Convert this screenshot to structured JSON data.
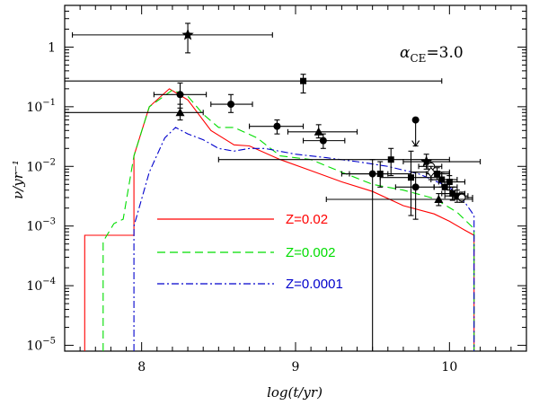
{
  "chart_data": {
    "type": "line",
    "xlabel": "log(t/yr)",
    "ylabel": "ν/yr⁻¹",
    "annotation": "α_CE=3.0",
    "xlim": [
      7.5,
      10.5
    ],
    "ylim": [
      8e-06,
      5
    ],
    "yscale": "log",
    "x_ticks": [
      {
        "v": 8,
        "label": "8"
      },
      {
        "v": 9,
        "label": "9"
      },
      {
        "v": 10,
        "label": "10"
      }
    ],
    "y_ticks": [
      {
        "v": 1e-05,
        "base": "10",
        "exp": "−5"
      },
      {
        "v": 0.0001,
        "base": "10",
        "exp": "−4"
      },
      {
        "v": 0.001,
        "base": "10",
        "exp": "−3"
      },
      {
        "v": 0.01,
        "base": "10",
        "exp": "−2"
      },
      {
        "v": 0.1,
        "base": "10",
        "exp": "−1"
      },
      {
        "v": 1,
        "base": "1",
        "exp": ""
      }
    ],
    "series": [
      {
        "name": "Z=0.02",
        "color": "#ff0000",
        "dash": "",
        "x": [
          7.63,
          7.63,
          7.7,
          7.95,
          7.95,
          8.05,
          8.18,
          8.3,
          8.45,
          8.6,
          8.7,
          8.9,
          9.1,
          9.3,
          9.5,
          9.7,
          9.9,
          10.0,
          10.1,
          10.16,
          10.16
        ],
        "y": [
          8e-06,
          0.0007,
          0.0007,
          0.0007,
          0.015,
          0.1,
          0.2,
          0.13,
          0.04,
          0.023,
          0.022,
          0.013,
          0.0085,
          0.0055,
          0.0038,
          0.0022,
          0.0016,
          0.0012,
          0.00085,
          0.0007,
          8e-06
        ]
      },
      {
        "name": "Z=0.002",
        "color": "#00dd00",
        "dash": "9,5",
        "x": [
          7.75,
          7.75,
          7.82,
          7.88,
          7.95,
          8.05,
          8.2,
          8.3,
          8.4,
          8.5,
          8.6,
          8.75,
          8.9,
          9.1,
          9.3,
          9.5,
          9.7,
          9.9,
          10.05,
          10.16,
          10.16
        ],
        "y": [
          8e-06,
          0.00055,
          0.0011,
          0.0013,
          0.015,
          0.1,
          0.19,
          0.15,
          0.075,
          0.045,
          0.045,
          0.03,
          0.015,
          0.013,
          0.008,
          0.005,
          0.004,
          0.0029,
          0.0017,
          0.0009,
          8e-06
        ]
      },
      {
        "name": "Z=0.0001",
        "color": "#0000cc",
        "dash": "8,3,2,3",
        "x": [
          7.95,
          7.95,
          8.05,
          8.15,
          8.22,
          8.3,
          8.4,
          8.5,
          8.6,
          8.7,
          8.8,
          9.0,
          9.2,
          9.4,
          9.6,
          9.8,
          10.0,
          10.1,
          10.16,
          10.16
        ],
        "y": [
          8e-06,
          0.001,
          0.008,
          0.03,
          0.045,
          0.035,
          0.028,
          0.02,
          0.018,
          0.02,
          0.02,
          0.016,
          0.014,
          0.012,
          0.01,
          0.0075,
          0.0045,
          0.0025,
          0.0015,
          8e-06
        ]
      }
    ],
    "observations": [
      {
        "x": 8.3,
        "y": 1.6,
        "xmin": 7.55,
        "xmax": 8.85,
        "ymin": 0.8,
        "ymax": 2.5,
        "marker": "star"
      },
      {
        "x": 9.05,
        "y": 0.27,
        "xmin": 7.5,
        "xmax": 9.95,
        "ymin": 0.17,
        "ymax": 0.35,
        "marker": "square"
      },
      {
        "x": 8.25,
        "y": 0.16,
        "xmin": 8.08,
        "xmax": 8.42,
        "ymin": 0.095,
        "ymax": 0.25,
        "marker": "circle"
      },
      {
        "x": 8.25,
        "y": 0.08,
        "xmin": 7.5,
        "xmax": 8.4,
        "ymin": 0.06,
        "ymax": 0.11,
        "marker": "triangle"
      },
      {
        "x": 8.58,
        "y": 0.11,
        "xmin": 8.45,
        "xmax": 8.72,
        "ymin": 0.08,
        "ymax": 0.16,
        "marker": "circle"
      },
      {
        "x": 8.88,
        "y": 0.047,
        "xmin": 8.7,
        "xmax": 9.05,
        "ymin": 0.035,
        "ymax": 0.06,
        "marker": "circle"
      },
      {
        "x": 9.15,
        "y": 0.038,
        "xmin": 8.95,
        "xmax": 9.4,
        "ymin": 0.03,
        "ymax": 0.05,
        "marker": "triangle"
      },
      {
        "x": 9.18,
        "y": 0.027,
        "xmin": 9.05,
        "xmax": 9.32,
        "ymin": 0.02,
        "ymax": 0.035,
        "marker": "circle"
      },
      {
        "x": 9.78,
        "y": 0.06,
        "xmin": 9.78,
        "xmax": 9.78,
        "ymin": 0.022,
        "ymax": 0.06,
        "marker": "circle-upper"
      },
      {
        "x": 9.62,
        "y": 0.013,
        "xmin": 8.5,
        "xmax": 10.0,
        "ymin": 0.007,
        "ymax": 0.02,
        "marker": "square"
      },
      {
        "x": 9.5,
        "y": 0.0075,
        "xmin": 9.3,
        "xmax": 9.6,
        "ymin": 8e-06,
        "ymax": 0.013,
        "marker": "circle"
      },
      {
        "x": 9.55,
        "y": 0.0075,
        "xmin": 9.35,
        "xmax": 9.75,
        "ymin": 0.0045,
        "ymax": 0.012,
        "marker": "square"
      },
      {
        "x": 9.75,
        "y": 0.0065,
        "xmin": 9.55,
        "xmax": 9.95,
        "ymin": 0.0015,
        "ymax": 0.018,
        "marker": "square"
      },
      {
        "x": 9.78,
        "y": 0.0045,
        "xmin": 9.65,
        "xmax": 9.9,
        "ymin": 0.0013,
        "ymax": 0.008,
        "marker": "circle"
      },
      {
        "x": 9.85,
        "y": 0.012,
        "xmin": 9.7,
        "xmax": 10.2,
        "ymin": 0.009,
        "ymax": 0.016,
        "marker": "star"
      },
      {
        "x": 9.88,
        "y": 0.01,
        "xmin": 9.8,
        "xmax": 9.95,
        "ymin": 0.008,
        "ymax": 0.012,
        "marker": "open-circle"
      },
      {
        "x": 9.92,
        "y": 0.0075,
        "xmin": 9.85,
        "xmax": 10.0,
        "ymin": 0.006,
        "ymax": 0.0095,
        "marker": "square"
      },
      {
        "x": 9.95,
        "y": 0.006,
        "xmin": 9.88,
        "xmax": 10.05,
        "ymin": 0.0045,
        "ymax": 0.008,
        "marker": "square"
      },
      {
        "x": 9.97,
        "y": 0.0045,
        "xmin": 9.9,
        "xmax": 10.05,
        "ymin": 0.0035,
        "ymax": 0.0055,
        "marker": "square"
      },
      {
        "x": 10.0,
        "y": 0.0055,
        "xmin": 9.93,
        "xmax": 10.1,
        "ymin": 0.004,
        "ymax": 0.007,
        "marker": "square"
      },
      {
        "x": 10.02,
        "y": 0.0035,
        "xmin": 9.95,
        "xmax": 10.1,
        "ymin": 0.0027,
        "ymax": 0.0045,
        "marker": "square"
      },
      {
        "x": 10.05,
        "y": 0.0032,
        "xmin": 9.97,
        "xmax": 10.12,
        "ymin": 0.0025,
        "ymax": 0.004,
        "marker": "square"
      },
      {
        "x": 10.08,
        "y": 0.003,
        "xmin": 10.02,
        "xmax": 10.15,
        "ymin": 0.0025,
        "ymax": 0.0037,
        "marker": "open-circle"
      },
      {
        "x": 9.93,
        "y": 0.0028,
        "xmin": 9.2,
        "xmax": 10.15,
        "ymin": 0.0022,
        "ymax": 0.0035,
        "marker": "triangle"
      },
      {
        "x": 9.88,
        "y": 0.008,
        "xmin": 9.75,
        "xmax": 10.0,
        "ymin": 0.006,
        "ymax": 0.01,
        "marker": "diamond"
      }
    ]
  }
}
